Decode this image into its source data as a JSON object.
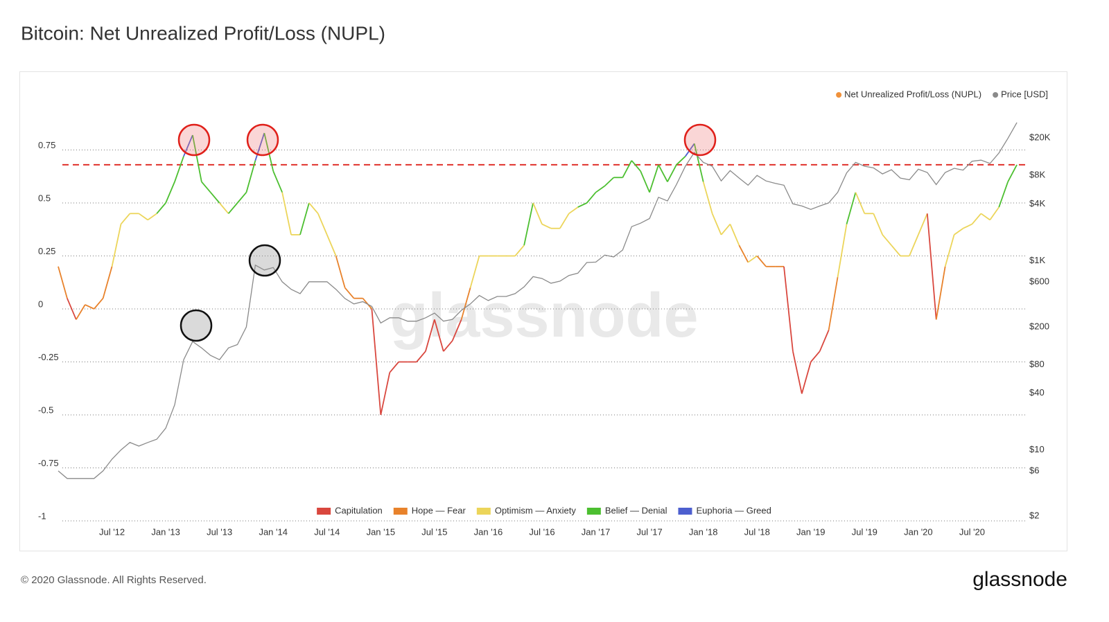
{
  "chart_data": {
    "type": "line",
    "title": "Bitcoin: Net Unrealized Profit/Loss (NUPL)",
    "x": [
      "2012-01",
      "2012-02",
      "2012-03",
      "2012-04",
      "2012-05",
      "2012-06",
      "2012-07",
      "2012-08",
      "2012-09",
      "2012-10",
      "2012-11",
      "2012-12",
      "2013-01",
      "2013-02",
      "2013-03",
      "2013-04",
      "2013-05",
      "2013-06",
      "2013-07",
      "2013-08",
      "2013-09",
      "2013-10",
      "2013-11",
      "2013-12",
      "2014-01",
      "2014-02",
      "2014-03",
      "2014-04",
      "2014-05",
      "2014-06",
      "2014-07",
      "2014-08",
      "2014-09",
      "2014-10",
      "2014-11",
      "2014-12",
      "2015-01",
      "2015-02",
      "2015-03",
      "2015-04",
      "2015-05",
      "2015-06",
      "2015-07",
      "2015-08",
      "2015-09",
      "2015-10",
      "2015-11",
      "2015-12",
      "2016-01",
      "2016-02",
      "2016-03",
      "2016-04",
      "2016-05",
      "2016-06",
      "2016-07",
      "2016-08",
      "2016-09",
      "2016-10",
      "2016-11",
      "2016-12",
      "2017-01",
      "2017-02",
      "2017-03",
      "2017-04",
      "2017-05",
      "2017-06",
      "2017-07",
      "2017-08",
      "2017-09",
      "2017-10",
      "2017-11",
      "2017-12",
      "2018-01",
      "2018-02",
      "2018-03",
      "2018-04",
      "2018-05",
      "2018-06",
      "2018-07",
      "2018-08",
      "2018-09",
      "2018-10",
      "2018-11",
      "2018-12",
      "2019-01",
      "2019-02",
      "2019-03",
      "2019-04",
      "2019-05",
      "2019-06",
      "2019-07",
      "2019-08",
      "2019-09",
      "2019-10",
      "2019-11",
      "2019-12",
      "2020-01",
      "2020-02",
      "2020-03",
      "2020-04",
      "2020-05",
      "2020-06",
      "2020-07",
      "2020-08",
      "2020-09",
      "2020-10",
      "2020-11",
      "2020-12"
    ],
    "series": [
      {
        "name": "Net Unrealized Profit/Loss (NUPL)",
        "color": "#f0913a",
        "values": [
          0.2,
          0.05,
          -0.05,
          0.02,
          0.0,
          0.05,
          0.2,
          0.4,
          0.45,
          0.45,
          0.42,
          0.45,
          0.5,
          0.6,
          0.72,
          0.82,
          0.6,
          0.55,
          0.5,
          0.45,
          0.5,
          0.55,
          0.7,
          0.83,
          0.65,
          0.55,
          0.35,
          0.35,
          0.5,
          0.45,
          0.35,
          0.25,
          0.1,
          0.05,
          0.05,
          0.0,
          -0.5,
          -0.3,
          -0.25,
          -0.25,
          -0.25,
          -0.2,
          -0.05,
          -0.2,
          -0.15,
          -0.05,
          0.1,
          0.25,
          0.25,
          0.25,
          0.25,
          0.25,
          0.3,
          0.5,
          0.4,
          0.38,
          0.38,
          0.45,
          0.48,
          0.5,
          0.55,
          0.58,
          0.62,
          0.62,
          0.7,
          0.65,
          0.55,
          0.68,
          0.6,
          0.68,
          0.72,
          0.78,
          0.6,
          0.45,
          0.35,
          0.4,
          0.3,
          0.22,
          0.25,
          0.2,
          0.2,
          0.2,
          -0.2,
          -0.4,
          -0.25,
          -0.2,
          -0.1,
          0.15,
          0.4,
          0.55,
          0.45,
          0.45,
          0.35,
          0.3,
          0.25,
          0.25,
          0.35,
          0.45,
          -0.05,
          0.2,
          0.35,
          0.38,
          0.4,
          0.45,
          0.42,
          0.48,
          0.6,
          0.68
        ]
      },
      {
        "name": "Price [USD]",
        "color": "#8a8a8a",
        "axis": "y2",
        "values": [
          6,
          5,
          5,
          5,
          5,
          6,
          8,
          10,
          12,
          11,
          12,
          13,
          17,
          30,
          90,
          140,
          120,
          100,
          90,
          120,
          130,
          200,
          900,
          800,
          850,
          600,
          500,
          450,
          600,
          600,
          600,
          500,
          400,
          350,
          370,
          330,
          220,
          250,
          250,
          230,
          230,
          250,
          280,
          230,
          240,
          300,
          350,
          430,
          380,
          420,
          420,
          450,
          530,
          680,
          650,
          580,
          610,
          700,
          740,
          960,
          970,
          1150,
          1100,
          1300,
          2300,
          2500,
          2800,
          4700,
          4300,
          6400,
          10000,
          14000,
          11000,
          10000,
          7000,
          9000,
          7500,
          6300,
          8000,
          7000,
          6600,
          6300,
          4000,
          3800,
          3500,
          3800,
          4100,
          5300,
          8500,
          11000,
          10000,
          9600,
          8300,
          9200,
          7500,
          7200,
          9300,
          8600,
          6400,
          8600,
          9500,
          9100,
          11300,
          11600,
          10700,
          13800,
          19700,
          29000
        ]
      }
    ],
    "zones": [
      {
        "name": "Capitulation",
        "color": "#d9473e",
        "min": -1
      },
      {
        "name": "Hope — Fear",
        "color": "#e8822b",
        "min": 0
      },
      {
        "name": "Optimism — Anxiety",
        "color": "#ecd55a",
        "min": 0.25
      },
      {
        "name": "Belief — Denial",
        "color": "#4cbf30",
        "min": 0.5
      },
      {
        "name": "Euphoria — Greed",
        "color": "#4d5fcf",
        "min": 0.75
      }
    ],
    "reference_line": {
      "value": 0.68,
      "color": "#e0302a"
    },
    "xlim": [
      "2012-01",
      "2021-01"
    ],
    "xticks": [
      {
        "value": "2012-07",
        "label": "Jul '12"
      },
      {
        "value": "2013-01",
        "label": "Jan '13"
      },
      {
        "value": "2013-07",
        "label": "Jul '13"
      },
      {
        "value": "2014-01",
        "label": "Jan '14"
      },
      {
        "value": "2014-07",
        "label": "Jul '14"
      },
      {
        "value": "2015-01",
        "label": "Jan '15"
      },
      {
        "value": "2015-07",
        "label": "Jul '15"
      },
      {
        "value": "2016-01",
        "label": "Jan '16"
      },
      {
        "value": "2016-07",
        "label": "Jul '16"
      },
      {
        "value": "2017-01",
        "label": "Jan '17"
      },
      {
        "value": "2017-07",
        "label": "Jul '17"
      },
      {
        "value": "2018-01",
        "label": "Jan '18"
      },
      {
        "value": "2018-07",
        "label": "Jul '18"
      },
      {
        "value": "2019-01",
        "label": "Jan '19"
      },
      {
        "value": "2019-07",
        "label": "Jul '19"
      },
      {
        "value": "2020-01",
        "label": "Jan '20"
      },
      {
        "value": "2020-07",
        "label": "Jul '20"
      }
    ],
    "ylim": [
      -1,
      1
    ],
    "yticks": [
      0.75,
      0.5,
      0.25,
      0,
      -0.25,
      -0.5,
      -0.75,
      -1
    ],
    "y2lim": [
      1.78,
      54000
    ],
    "y2log": true,
    "y2ticks": [
      {
        "value": 2,
        "label": "$2"
      },
      {
        "value": 6,
        "label": "$6"
      },
      {
        "value": 10,
        "label": "$10"
      },
      {
        "value": 40,
        "label": "$40"
      },
      {
        "value": 80,
        "label": "$80"
      },
      {
        "value": 200,
        "label": "$200"
      },
      {
        "value": 600,
        "label": "$600"
      },
      {
        "value": 1000,
        "label": "$1K"
      },
      {
        "value": 4000,
        "label": "$4K"
      },
      {
        "value": 8000,
        "label": "$8K"
      },
      {
        "value": 20000,
        "label": "$20K"
      }
    ],
    "grid": true
  },
  "watermark": "glassnode",
  "footer": "© 2020 Glassnode. All Rights Reserved.",
  "logo": "glassnode"
}
